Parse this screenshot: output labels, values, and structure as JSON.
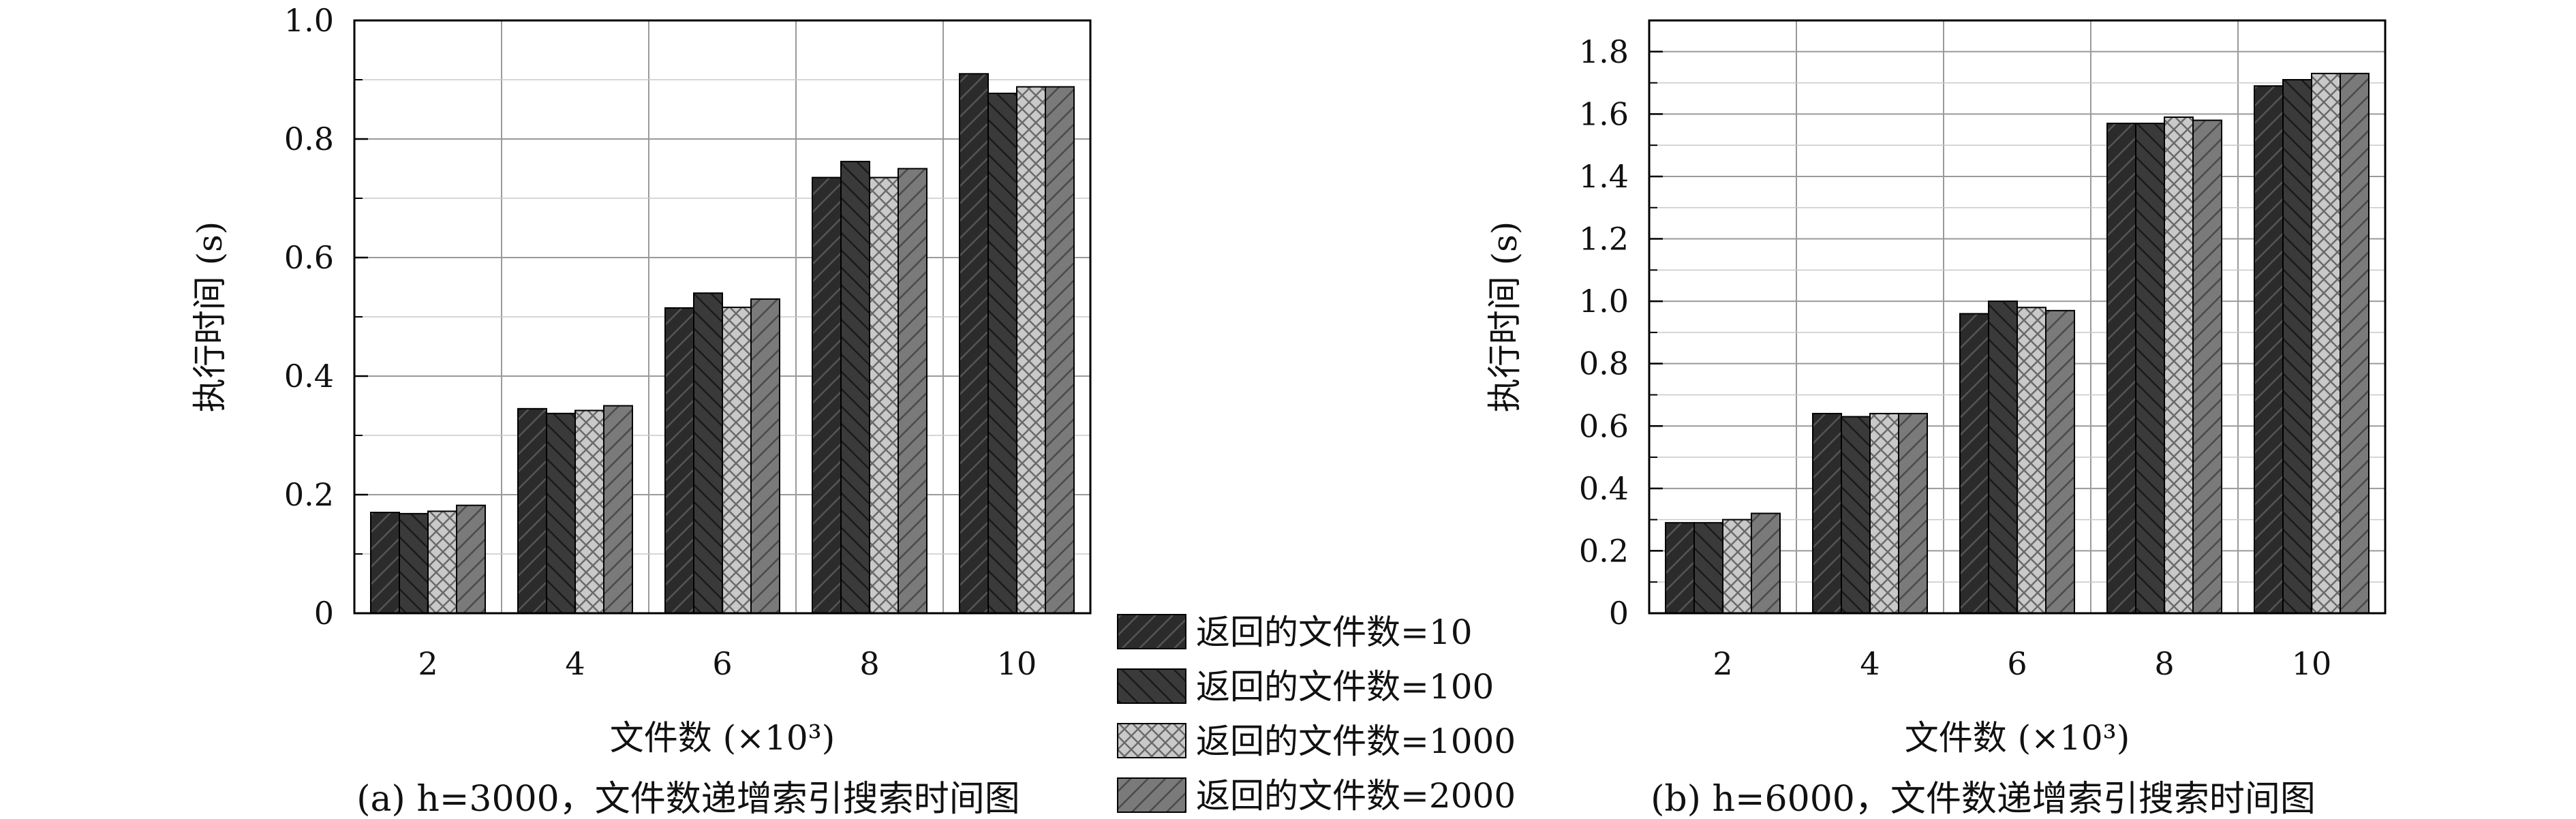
{
  "chart_data": [
    {
      "type": "bar",
      "caption": "(a) h=3000，文件数递增索引搜索时间图",
      "xlabel": "文件数 (×10³)",
      "ylabel": "执行时间 (s)",
      "categories": [
        "2",
        "4",
        "6",
        "8",
        "10"
      ],
      "ylim": [
        0,
        1.0
      ],
      "yticks": [
        "0",
        "0.2",
        "0.4",
        "0.6",
        "0.8",
        "1.0"
      ],
      "ytick_values": [
        0,
        0.2,
        0.4,
        0.6,
        0.8,
        1.0
      ],
      "grid": true,
      "series": [
        {
          "name": "返回的文件数=10",
          "values": [
            0.17,
            0.345,
            0.515,
            0.735,
            0.91
          ]
        },
        {
          "name": "返回的文件数=100",
          "values": [
            0.168,
            0.337,
            0.54,
            0.762,
            0.877
          ]
        },
        {
          "name": "返回的文件数=1000",
          "values": [
            0.172,
            0.342,
            0.516,
            0.735,
            0.888
          ]
        },
        {
          "name": "返回的文件数=2000",
          "values": [
            0.182,
            0.35,
            0.53,
            0.75,
            0.888
          ]
        }
      ]
    },
    {
      "type": "bar",
      "caption": "(b) h=6000，文件数递增索引搜索时间图",
      "xlabel": "文件数 (×10³)",
      "ylabel": "执行时间 (s)",
      "categories": [
        "2",
        "4",
        "6",
        "8",
        "10"
      ],
      "ylim": [
        0,
        1.9
      ],
      "yticks": [
        "0",
        "0.2",
        "0.4",
        "0.6",
        "0.8",
        "1.0",
        "1.2",
        "1.4",
        "1.6",
        "1.8"
      ],
      "ytick_values": [
        0,
        0.2,
        0.4,
        0.6,
        0.8,
        1.0,
        1.2,
        1.4,
        1.6,
        1.8
      ],
      "grid": true,
      "series": [
        {
          "name": "返回的文件数=10",
          "values": [
            0.29,
            0.64,
            0.96,
            1.57,
            1.69
          ]
        },
        {
          "name": "返回的文件数=100",
          "values": [
            0.29,
            0.63,
            1.0,
            1.57,
            1.71
          ]
        },
        {
          "name": "返回的文件数=1000",
          "values": [
            0.3,
            0.64,
            0.98,
            1.59,
            1.73
          ]
        },
        {
          "name": "返回的文件数=2000",
          "values": [
            0.32,
            0.64,
            0.97,
            1.58,
            1.73
          ]
        }
      ]
    }
  ],
  "legend": {
    "position": "bottom-center",
    "entries": [
      "返回的文件数=10",
      "返回的文件数=100",
      "返回的文件数=1000",
      "返回的文件数=2000"
    ],
    "patterns": [
      "hatch-dark",
      "hatch-dark-reverse",
      "crosshatch-light",
      "hatch-medium"
    ]
  },
  "colors": {
    "series_10_fill": "#2b2b2b",
    "series_100_fill": "#3a3a3a",
    "series_1000_fill": "#bdbdbd",
    "series_2000_fill": "#6e6e6e",
    "grid": "#9a9a9a",
    "axis": "#000000"
  }
}
